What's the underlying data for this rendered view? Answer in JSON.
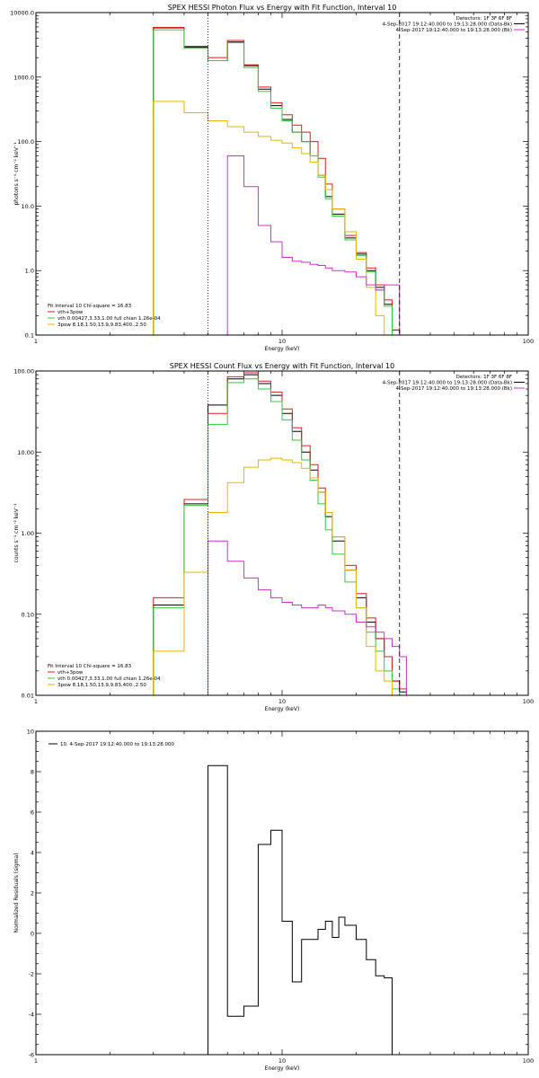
{
  "colors": {
    "black": "#000000",
    "red": "#e41a1c",
    "green": "#2ecc40",
    "yellow": "#e6b800",
    "magenta": "#cc33cc"
  },
  "chart_data": [
    {
      "type": "line",
      "title": "SPEX HESSI Photon Flux vs Energy with Fit Function, Interval 10",
      "xlabel": "Energy (keV)",
      "ylabel": "photons s⁻¹ cm⁻² keV⁻¹",
      "xscale": "log",
      "yscale": "log",
      "xlim": [
        1,
        100
      ],
      "ylim": [
        0.1,
        10000
      ],
      "xticks": [
        {
          "v": 1,
          "t": "1"
        },
        {
          "v": 10,
          "t": "10"
        },
        {
          "v": 100,
          "t": "100"
        }
      ],
      "yticks": [
        {
          "v": 0.1,
          "t": "0.1"
        },
        {
          "v": 1,
          "t": "1.0"
        },
        {
          "v": 10,
          "t": "10.0"
        },
        {
          "v": 100,
          "t": "100.0"
        },
        {
          "v": 1000,
          "t": "1000.0"
        },
        {
          "v": 10000,
          "t": "10000.0"
        }
      ],
      "vlines": [
        {
          "x": 5,
          "style": "dotted"
        },
        {
          "x": 30,
          "style": "dashed"
        }
      ],
      "info_lines": [
        "Detectors: 1F 3F 6F 8F",
        "4-Sep-2017 19:12:40.000 to 19:13:28.000 (Data-Bk)",
        "4-Sep-2017 19:12:40.000 to 19:13:28.000 (Bk)"
      ],
      "fit_text": "Fit Interval 10   Chi-square = 16.83",
      "legend": [
        {
          "label": "vth+3pow",
          "color": "red"
        },
        {
          "label": "vth 0.00427,3.33,1.00  full chian 1.26e-04",
          "color": "green"
        },
        {
          "label": "3pow 8.18,1.50,13.9,9.83,400.,2.50",
          "color": "yellow"
        }
      ],
      "edges": [
        3,
        4,
        5,
        6,
        7,
        8,
        9,
        10,
        11,
        12,
        13,
        14,
        15,
        16,
        18,
        20,
        22,
        24,
        26,
        28,
        30
      ],
      "series": [
        {
          "name": "Data-Bk",
          "color": "black",
          "from": 3,
          "values": [
            5800,
            2900,
            1800,
            3500,
            1500,
            650,
            360,
            220,
            140,
            100,
            60,
            30,
            14,
            7.5,
            3.2,
            1.8,
            1.0,
            0.55,
            0.3,
            0.12
          ]
        },
        {
          "name": "vth+3pow",
          "color": "red",
          "from": 3,
          "values": [
            5900,
            3000,
            2000,
            3700,
            1550,
            700,
            400,
            260,
            180,
            140,
            100,
            55,
            22,
            9,
            3.5,
            1.9,
            1.1,
            0.6,
            0.35,
            0.12
          ]
        },
        {
          "name": "vth",
          "color": "green",
          "from": 3,
          "values": [
            5400,
            2800,
            1800,
            3400,
            1400,
            600,
            330,
            210,
            140,
            100,
            60,
            28,
            13,
            7,
            3,
            1.7,
            0.95,
            0.5,
            0.28,
            0.1
          ]
        },
        {
          "name": "3pow",
          "color": "yellow",
          "from": 3,
          "values": [
            420,
            280,
            210,
            170,
            140,
            120,
            105,
            95,
            80,
            65,
            48,
            30,
            18,
            9,
            4,
            1.5,
            0.55,
            0.2,
            0.1,
            0.1
          ]
        },
        {
          "name": "Bk",
          "color": "magenta",
          "from": 5,
          "values": [
            0.1,
            60,
            20,
            5,
            2.8,
            1.6,
            1.4,
            1.35,
            1.25,
            1.2,
            1.1,
            1.0,
            0.95,
            0.8,
            0.6,
            0.5,
            0.6,
            0.6
          ]
        }
      ]
    },
    {
      "type": "line",
      "title": "SPEX HESSI Count Flux vs Energy with Fit Function, Interval 10",
      "xlabel": "Energy (keV)",
      "ylabel": "counts s⁻¹ cm⁻² keV⁻¹",
      "xscale": "log",
      "yscale": "log",
      "xlim": [
        1,
        100
      ],
      "ylim": [
        0.01,
        100
      ],
      "xticks": [
        {
          "v": 1,
          "t": "1"
        },
        {
          "v": 10,
          "t": "10"
        },
        {
          "v": 100,
          "t": "100"
        }
      ],
      "yticks": [
        {
          "v": 0.01,
          "t": "0.01"
        },
        {
          "v": 0.1,
          "t": "0.10"
        },
        {
          "v": 1,
          "t": "1.00"
        },
        {
          "v": 10,
          "t": "10.00"
        },
        {
          "v": 100,
          "t": "100.00"
        }
      ],
      "vlines": [
        {
          "x": 5,
          "style": "dotted"
        },
        {
          "x": 30,
          "style": "dashed"
        }
      ],
      "info_lines": [
        "Detectors: 1F 3F 6F 8F",
        "4-Sep-2017 19:12:40.000 to 19:13:28.000 (Data-Bk)",
        "4-Sep-2017 19:12:40.000 to 19:13:28.000 (Bk)"
      ],
      "fit_text": "Fit Interval 10   Chi-square = 16.83",
      "legend": [
        {
          "label": "vth+3pow",
          "color": "red"
        },
        {
          "label": "vth 0.00427,3.33,1.00  full chian 1.26e-04",
          "color": "green"
        },
        {
          "label": "3pow 8.18,1.50,13.9,9.83,400.,2.50",
          "color": "yellow"
        }
      ],
      "edges": [
        3,
        4,
        5,
        6,
        7,
        8,
        9,
        10,
        11,
        12,
        13,
        14,
        15,
        16,
        18,
        20,
        22,
        24,
        26,
        28,
        30,
        32
      ],
      "series": [
        {
          "name": "Data-Bk",
          "color": "black",
          "from": 3,
          "values": [
            0.13,
            2.3,
            38,
            80,
            90,
            70,
            50,
            30,
            18,
            10,
            6,
            3.2,
            1.6,
            0.8,
            0.35,
            0.16,
            0.08,
            0.05,
            0.03,
            0.015,
            0.011
          ]
        },
        {
          "name": "vth+3pow",
          "color": "red",
          "from": 3,
          "values": [
            0.16,
            2.6,
            30,
            85,
            95,
            75,
            55,
            34,
            20,
            12,
            7,
            3.6,
            1.8,
            0.9,
            0.4,
            0.18,
            0.09,
            0.05,
            0.03,
            0.015,
            0.012
          ]
        },
        {
          "name": "vth",
          "color": "green",
          "from": 3,
          "values": [
            0.12,
            2.2,
            22,
            72,
            80,
            60,
            42,
            25,
            14,
            8,
            4.5,
            2.3,
            1.1,
            0.55,
            0.25,
            0.12,
            0.06,
            0.035,
            0.02,
            0.012,
            0.01
          ]
        },
        {
          "name": "3pow",
          "color": "yellow",
          "from": 3,
          "values": [
            0.035,
            0.33,
            1.8,
            4.2,
            6.5,
            8,
            8.4,
            8,
            7.4,
            6.3,
            4.8,
            3.2,
            1.8,
            0.9,
            0.35,
            0.12,
            0.04,
            0.02,
            0.015,
            0.01,
            0.01
          ]
        },
        {
          "name": "Bk",
          "color": "magenta",
          "from": 5,
          "values": [
            0.8,
            0.45,
            0.28,
            0.2,
            0.16,
            0.14,
            0.13,
            0.12,
            0.12,
            0.13,
            0.12,
            0.11,
            0.1,
            0.08,
            0.07,
            0.06,
            0.05,
            0.04,
            0.03
          ]
        }
      ]
    },
    {
      "type": "line",
      "xlabel": "Energy (keV)",
      "ylabel": "Normalized Residuals (sigma)",
      "xscale": "log",
      "xlim": [
        1,
        100
      ],
      "ylim": [
        -6,
        10
      ],
      "xticks": [
        {
          "v": 1,
          "t": "1"
        },
        {
          "v": 10,
          "t": "10"
        },
        {
          "v": 100,
          "t": "100"
        }
      ],
      "yticks": [
        {
          "v": -6,
          "t": "-6"
        },
        {
          "v": -4,
          "t": "-4"
        },
        {
          "v": -2,
          "t": "-2"
        },
        {
          "v": 0,
          "t": "0"
        },
        {
          "v": 2,
          "t": "2"
        },
        {
          "v": 4,
          "t": "4"
        },
        {
          "v": 6,
          "t": "6"
        },
        {
          "v": 8,
          "t": "8"
        },
        {
          "v": 10,
          "t": "10"
        }
      ],
      "legend": [
        {
          "label": "10. 4-Sep-2017 19:12:40.000 to 19:13:28.000",
          "color": "black"
        }
      ],
      "edges": [
        5,
        6,
        7,
        8,
        9,
        10,
        11,
        12,
        13,
        14,
        15,
        16,
        17,
        18,
        20,
        22,
        24,
        26,
        28,
        30
      ],
      "series": [
        {
          "name": "10",
          "color": "black",
          "from": 5,
          "values": [
            8.3,
            -4.1,
            -3.6,
            4.4,
            5.1,
            0.6,
            -2.4,
            -0.3,
            -0.3,
            0.2,
            0.6,
            -0.2,
            0.8,
            0.4,
            -0.3,
            -1.3,
            -2.1,
            -2.2
          ]
        }
      ]
    }
  ]
}
